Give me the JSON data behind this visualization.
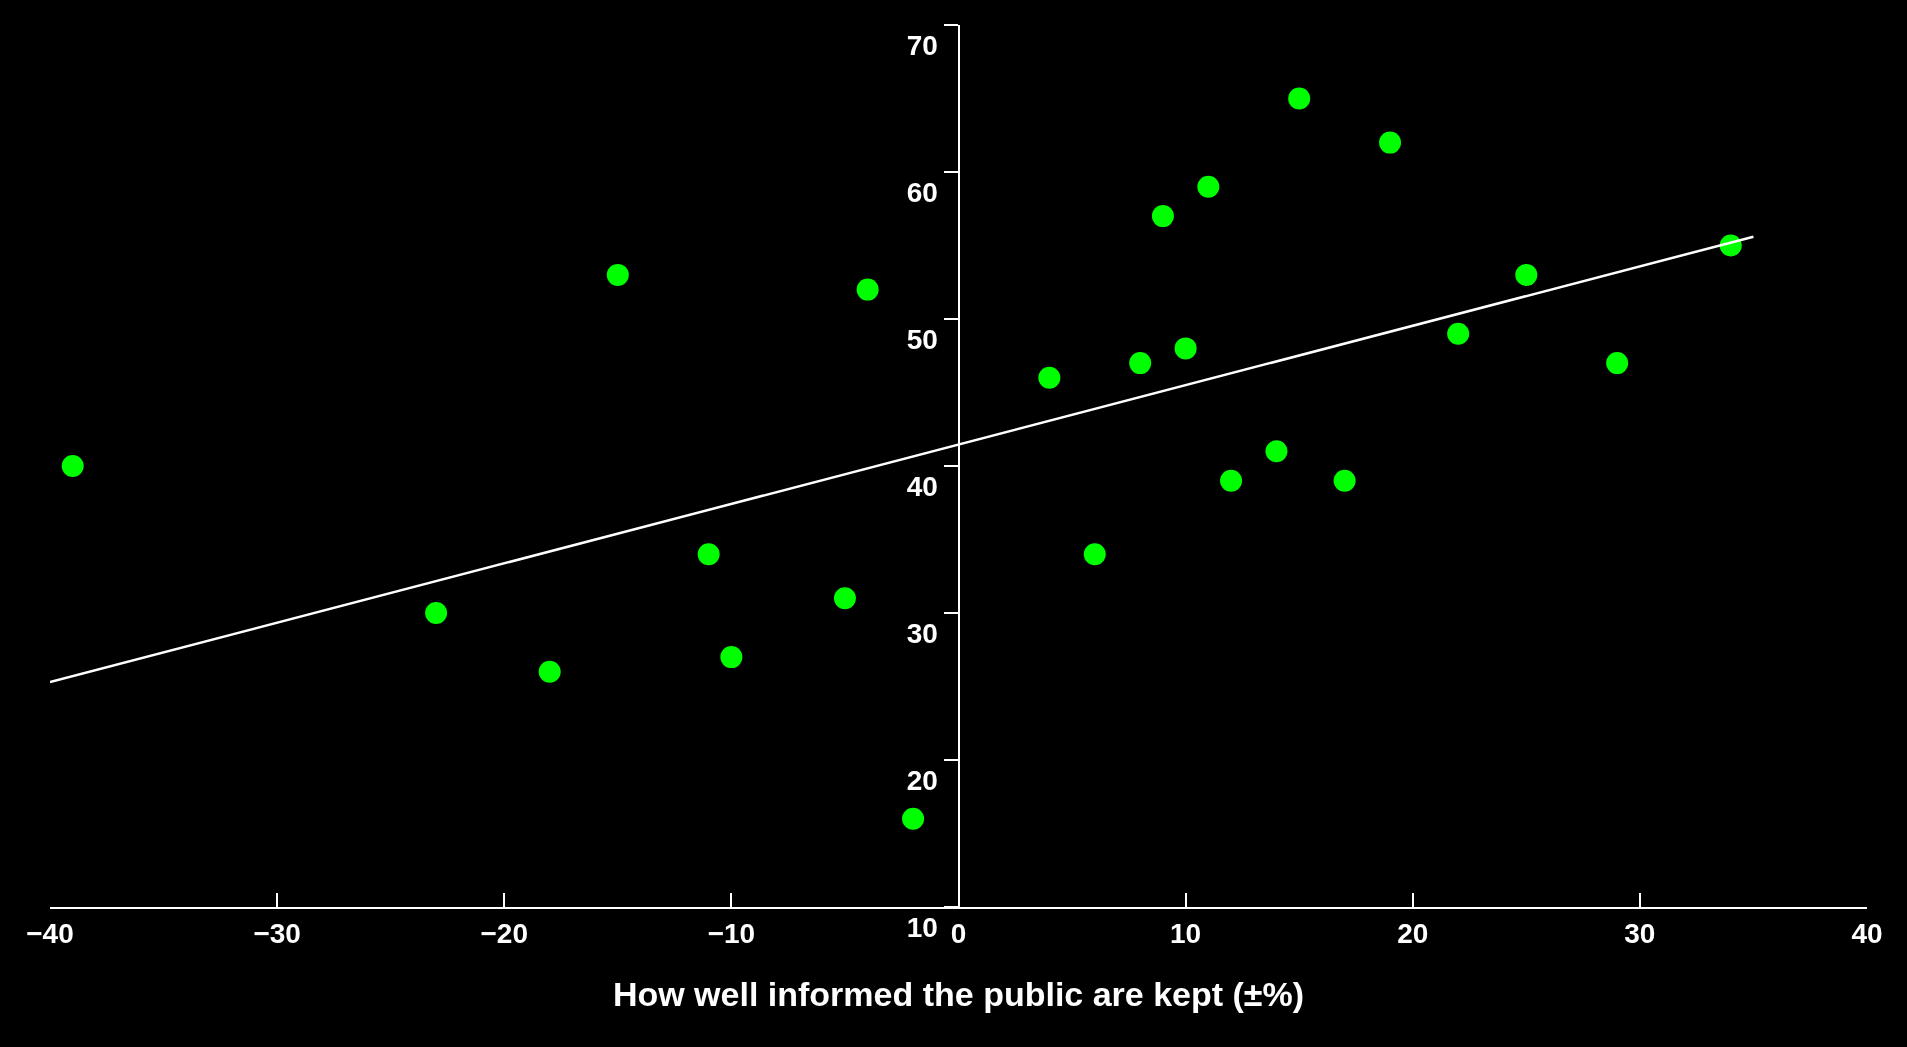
{
  "chart_data": {
    "type": "scatter",
    "xlabel": "How well informed the public are kept (±%)",
    "xlim": [
      -40,
      40
    ],
    "xticks": [
      -40,
      -30,
      -20,
      -10,
      0,
      10,
      20,
      30,
      40
    ],
    "ylim": [
      10,
      70
    ],
    "yticks": [
      10,
      20,
      30,
      40,
      50,
      60,
      70
    ],
    "grid": false,
    "marker": "circle",
    "series": [
      {
        "color": "#00ff00",
        "x": [
          -39,
          -23,
          -18,
          -15,
          -11,
          -10,
          -5,
          -4,
          -2,
          4,
          6,
          8,
          9,
          10,
          11,
          12,
          14,
          15,
          17,
          19,
          22,
          25,
          29,
          34
        ],
        "values": [
          40,
          30,
          26,
          53,
          34,
          27,
          31,
          52,
          16,
          46,
          34,
          47,
          57,
          48,
          59,
          39,
          41,
          65,
          39,
          62,
          49,
          53,
          47,
          55
        ]
      },
      {
        "type": "line",
        "color": "#ffffff",
        "line_style": "solid",
        "marker": "none",
        "x": [
          -40,
          35
        ],
        "values": [
          25.3,
          55.6
        ]
      }
    ]
  }
}
